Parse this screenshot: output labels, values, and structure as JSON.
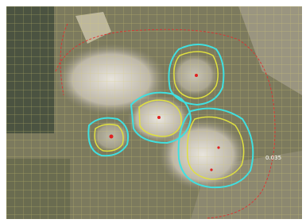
{
  "overlay": {
    "contour_label": "0.035"
  }
}
